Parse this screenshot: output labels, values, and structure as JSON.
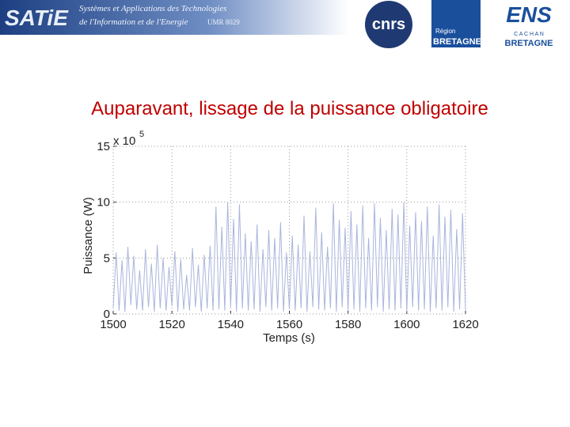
{
  "header": {
    "logo": "SATiE",
    "lab_line1": "Systèmes et Applications des Technologies",
    "lab_line2": "de l'Information et de l'Energie",
    "umr": "UMR 8029",
    "cnrs": "cnrs",
    "region_small": "Région",
    "region_big": "BRETAGNE",
    "ens": "ENS",
    "ens_cachan": "C A C H A N",
    "ens_bretagne": "BRETAGNE"
  },
  "chart_data": {
    "type": "line",
    "title": "Auparavant, lissage de la puissance obligatoire",
    "x_label": "Temps (s)",
    "y_label": "Puissance (W)",
    "y_multiplier": "x 10",
    "y_exponent": "5",
    "color": "#a9b5dc",
    "grid": true,
    "xlim": [
      1500,
      1620
    ],
    "xticks": [
      1500,
      1520,
      1540,
      1560,
      1580,
      1600,
      1620
    ],
    "ylim": [
      0,
      15
    ],
    "yticks": [
      0,
      5,
      10,
      15
    ],
    "x": [
      1500,
      1501,
      1502,
      1503,
      1504,
      1505,
      1506,
      1507,
      1508,
      1509,
      1510,
      1511,
      1512,
      1513,
      1514,
      1515,
      1516,
      1517,
      1518,
      1519,
      1520,
      1521,
      1522,
      1523,
      1524,
      1525,
      1526,
      1527,
      1528,
      1529,
      1530,
      1531,
      1532,
      1533,
      1534,
      1535,
      1536,
      1537,
      1538,
      1539,
      1540,
      1541,
      1542,
      1543,
      1544,
      1545,
      1546,
      1547,
      1548,
      1549,
      1550,
      1551,
      1552,
      1553,
      1554,
      1555,
      1556,
      1557,
      1558,
      1559,
      1560,
      1561,
      1562,
      1563,
      1564,
      1565,
      1566,
      1567,
      1568,
      1569,
      1570,
      1571,
      1572,
      1573,
      1574,
      1575,
      1576,
      1577,
      1578,
      1579,
      1580,
      1581,
      1582,
      1583,
      1584,
      1585,
      1586,
      1587,
      1588,
      1589,
      1590,
      1591,
      1592,
      1593,
      1594,
      1595,
      1596,
      1597,
      1598,
      1599,
      1600,
      1601,
      1602,
      1603,
      1604,
      1605,
      1606,
      1607,
      1608,
      1609,
      1610,
      1611,
      1612,
      1613,
      1614,
      1615,
      1616,
      1617,
      1618,
      1619,
      1620
    ],
    "values": [
      0.5,
      5.5,
      0.3,
      4.8,
      0.2,
      6.0,
      0.8,
      5.2,
      0.4,
      3.9,
      0.3,
      5.8,
      0.6,
      4.5,
      0.2,
      6.2,
      0.5,
      5.0,
      0.3,
      4.2,
      0.7,
      5.6,
      0.2,
      4.9,
      0.4,
      3.5,
      0.3,
      5.9,
      0.6,
      4.4,
      0.2,
      5.3,
      0.5,
      6.1,
      0.3,
      9.6,
      0.4,
      7.8,
      0.3,
      10.0,
      0.6,
      8.5,
      0.2,
      9.8,
      0.5,
      7.2,
      0.3,
      6.5,
      0.4,
      8.0,
      0.2,
      5.8,
      0.6,
      7.5,
      0.3,
      6.8,
      0.5,
      8.2,
      0.2,
      5.5,
      0.4,
      7.0,
      0.3,
      6.2,
      0.5,
      8.8,
      0.2,
      5.6,
      0.6,
      9.5,
      0.4,
      7.3,
      0.3,
      6.0,
      0.5,
      9.9,
      0.2,
      8.4,
      0.6,
      7.7,
      0.3,
      9.2,
      0.4,
      8.0,
      0.2,
      9.7,
      0.5,
      6.8,
      0.3,
      9.9,
      0.6,
      8.6,
      0.2,
      7.5,
      0.4,
      9.4,
      0.3,
      8.9,
      0.5,
      10.0,
      0.2,
      7.9,
      0.6,
      9.1,
      0.3,
      8.3,
      0.4,
      9.6,
      0.2,
      7.0,
      0.5,
      9.8,
      0.3,
      8.7,
      0.6,
      9.3,
      0.2,
      7.6,
      0.4,
      9.0,
      0.3
    ]
  }
}
